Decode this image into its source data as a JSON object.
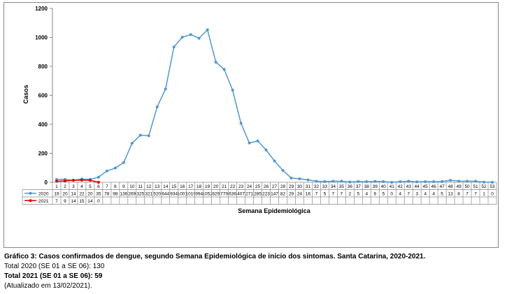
{
  "chart_data": {
    "type": "line",
    "y_label": "Casos",
    "x_label": "Semana Epidemiológica",
    "categories": [
      "1",
      "2",
      "3",
      "4",
      "5",
      "6",
      "7",
      "8",
      "9",
      "10",
      "11",
      "12",
      "13",
      "14",
      "15",
      "16",
      "17",
      "18",
      "19",
      "20",
      "21",
      "22",
      "23",
      "24",
      "25",
      "26",
      "27",
      "28",
      "29",
      "30",
      "31",
      "32",
      "33",
      "34",
      "35",
      "36",
      "37",
      "38",
      "39",
      "40",
      "41",
      "42",
      "43",
      "44",
      "45",
      "46",
      "47",
      "48",
      "49",
      "50",
      "51",
      "52",
      "53"
    ],
    "series": [
      {
        "name": "2020",
        "color": "#4f97d4",
        "values": [
          19,
          20,
          14,
          22,
          20,
          35,
          78,
          98,
          136,
          269,
          325,
          321,
          520,
          644,
          934,
          1001,
          1019,
          994,
          1052,
          829,
          779,
          636,
          407,
          271,
          285,
          223,
          147,
          82,
          29,
          24,
          16,
          7,
          5,
          7,
          7,
          2,
          5,
          4,
          6,
          5,
          0,
          4,
          7,
          3,
          4,
          4,
          5,
          13,
          8,
          7,
          7,
          1,
          0
        ]
      },
      {
        "name": "2021",
        "color": "#e00000",
        "values": [
          7,
          9,
          14,
          15,
          14,
          0,
          null,
          null,
          null,
          null,
          null,
          null,
          null,
          null,
          null,
          null,
          null,
          null,
          null,
          null,
          null,
          null,
          null,
          null,
          null,
          null,
          null,
          null,
          null,
          null,
          null,
          null,
          null,
          null,
          null,
          null,
          null,
          null,
          null,
          null,
          null,
          null,
          null,
          null,
          null,
          null,
          null,
          null,
          null,
          null,
          null,
          null,
          null
        ]
      }
    ],
    "ylim": [
      0,
      1200
    ],
    "yticks": [
      0,
      200,
      400,
      600,
      800,
      1000,
      1200
    ],
    "grid": false
  },
  "caption": {
    "title": "Gráfico 3: Casos confirmados de dengue, segundo Semana Epidemiológica de início dos sintomas. Santa Catarina, 2020-2021.",
    "total_2020": "Total 2020 (SE 01 a SE 06): 130",
    "total_2021": "Total 2021 (SE 01 a SE 06): 59",
    "updated": "(Atualizado em 13/02/2021)."
  }
}
